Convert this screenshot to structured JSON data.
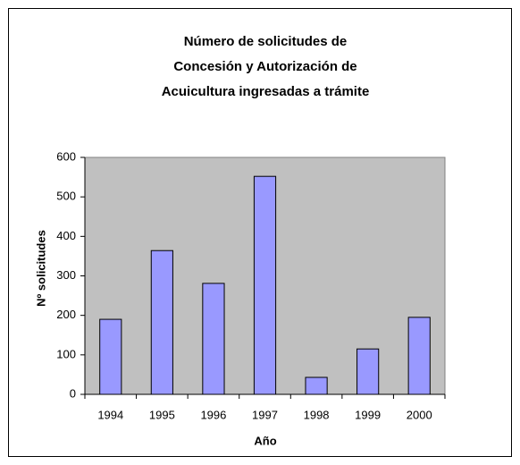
{
  "chart_data": {
    "type": "bar",
    "title": [
      "Número de solicitudes de",
      "Concesión y Autorización de",
      "Acuicultura ingresadas a trámite"
    ],
    "x_label": "Año",
    "y_label": "Nº solicitudes",
    "categories": [
      "1994",
      "1995",
      "1996",
      "1997",
      "1998",
      "1999",
      "2000"
    ],
    "values": [
      190,
      364,
      281,
      552,
      43,
      115,
      195
    ],
    "color": "#9999ff",
    "ylim": [
      0,
      600
    ],
    "yticks": [
      0,
      100,
      200,
      300,
      400,
      500,
      600
    ],
    "grid": false
  }
}
